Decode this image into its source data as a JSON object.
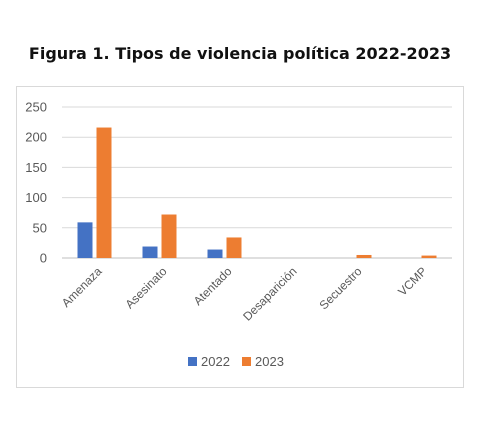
{
  "title": "Figura 1. Tipos de violencia política 2022-2023",
  "chart_data": {
    "type": "bar",
    "categories": [
      "Amenaza",
      "Asesinato",
      "Atentado",
      "Desaparición",
      "Secuestro",
      "VCMP"
    ],
    "series": [
      {
        "name": "2022",
        "color": "#4472c4",
        "values": [
          59,
          19,
          14,
          0,
          0,
          0
        ]
      },
      {
        "name": "2023",
        "color": "#ed7d31",
        "values": [
          216,
          72,
          34,
          0,
          5,
          4
        ]
      }
    ],
    "yticks": [
      0,
      50,
      100,
      150,
      200,
      250
    ],
    "ylim": [
      0,
      250
    ],
    "grid": true,
    "legend_position": "bottom"
  }
}
